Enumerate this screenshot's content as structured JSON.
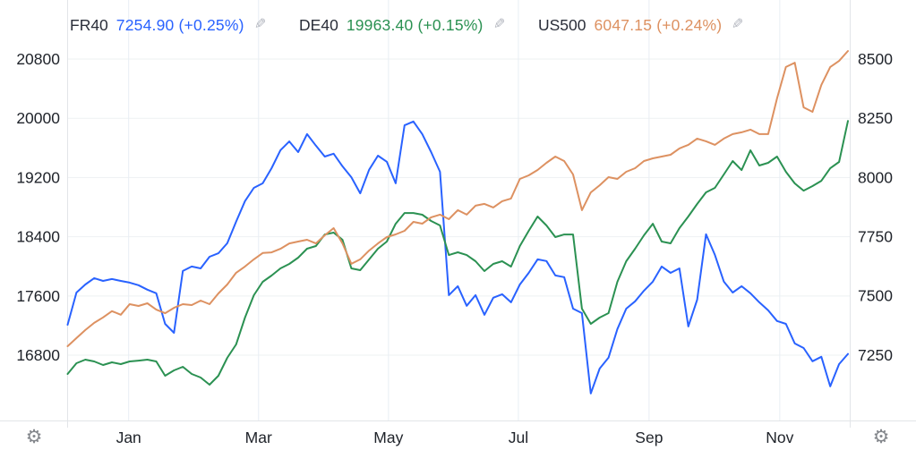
{
  "legend": {
    "items": [
      {
        "symbol": "FR40",
        "value": "7254.90",
        "change": "(+0.25%)",
        "color": "#2962ff"
      },
      {
        "symbol": "DE40",
        "value": "19963.40",
        "change": "(+0.15%)",
        "color": "#2b9152"
      },
      {
        "symbol": "US500",
        "value": "6047.15",
        "change": "(+0.24%)",
        "color": "#dd9161"
      }
    ]
  },
  "icons": {
    "gear": "⚙",
    "pencil": "✎"
  },
  "colors": {
    "blue": "#2962ff",
    "green": "#2b9152",
    "orange": "#dd9161",
    "axis_text": "#20242b",
    "grid_h": "#eef1f2",
    "grid_v": "#e8eef4",
    "border": "#e2e5e8"
  },
  "chart_data": {
    "type": "line",
    "title": "",
    "grid": true,
    "background": "#ffffff",
    "x_tick_labels": [
      "Jan",
      "Mar",
      "May",
      "Jul",
      "Sep",
      "Nov"
    ],
    "left_axis": {
      "series": "DE40",
      "ticks": [
        20800,
        20000,
        19200,
        18400,
        17600,
        16800
      ],
      "min": 15918,
      "max": 21054
    },
    "right_axis": {
      "series": "FR40",
      "ticks": [
        8500,
        8250,
        8000,
        7750,
        7500,
        7250
      ],
      "min": 6974,
      "max": 8579
    },
    "hidden_axis_us500": {
      "series": "US500",
      "min": 4401,
      "max": 6095
    },
    "series": [
      {
        "name": "FR40",
        "axis": "right",
        "color": "#2962ff",
        "last": 7254.9,
        "change_pct": 0.25,
        "values": [
          7378,
          7514,
          7548,
          7575,
          7563,
          7571,
          7563,
          7556,
          7545,
          7526,
          7511,
          7382,
          7344,
          7605,
          7624,
          7616,
          7665,
          7680,
          7722,
          7813,
          7900,
          7956,
          7975,
          8039,
          8115,
          8152,
          8107,
          8183,
          8134,
          8088,
          8100,
          8047,
          8001,
          7933,
          8032,
          8092,
          8066,
          7975,
          8220,
          8236,
          8183,
          8107,
          8024,
          7503,
          7541,
          7458,
          7503,
          7420,
          7492,
          7507,
          7473,
          7548,
          7597,
          7654,
          7647,
          7586,
          7579,
          7446,
          7427,
          7088,
          7193,
          7239,
          7360,
          7446,
          7477,
          7522,
          7560,
          7624,
          7597,
          7616,
          7371,
          7484,
          7760,
          7673,
          7560,
          7514,
          7541,
          7511,
          7473,
          7439,
          7394,
          7382,
          7299,
          7280,
          7224,
          7243,
          7118,
          7212,
          7254.9
        ]
      },
      {
        "name": "DE40",
        "axis": "left",
        "color": "#2b9152",
        "last": 19963.4,
        "change_pct": 0.15,
        "values": [
          16546,
          16691,
          16740,
          16715,
          16667,
          16703,
          16679,
          16715,
          16727,
          16740,
          16715,
          16522,
          16595,
          16643,
          16546,
          16498,
          16401,
          16522,
          16764,
          16945,
          17308,
          17610,
          17791,
          17876,
          17972,
          18033,
          18117,
          18238,
          18274,
          18431,
          18456,
          18359,
          17972,
          17948,
          18093,
          18238,
          18335,
          18576,
          18721,
          18721,
          18697,
          18613,
          18552,
          18153,
          18190,
          18153,
          18069,
          17936,
          18033,
          18069,
          17996,
          18274,
          18480,
          18673,
          18552,
          18395,
          18431,
          18431,
          17428,
          17223,
          17308,
          17368,
          17791,
          18069,
          18238,
          18419,
          18576,
          18335,
          18311,
          18516,
          18673,
          18842,
          18999,
          19060,
          19241,
          19422,
          19301,
          19567,
          19362,
          19398,
          19483,
          19277,
          19120,
          19023,
          19084,
          19156,
          19325,
          19410,
          19963.4
        ]
      },
      {
        "name": "US500",
        "axis": "us500",
        "color": "#dd9161",
        "last": 6047.15,
        "change_pct": 0.24,
        "values": [
          4732,
          4768,
          4804,
          4836,
          4860,
          4888,
          4872,
          4919,
          4911,
          4923,
          4895,
          4879,
          4903,
          4919,
          4915,
          4935,
          4919,
          4967,
          5007,
          5059,
          5087,
          5119,
          5147,
          5150,
          5166,
          5190,
          5198,
          5206,
          5190,
          5226,
          5258,
          5190,
          5099,
          5119,
          5158,
          5190,
          5218,
          5230,
          5246,
          5286,
          5278,
          5306,
          5318,
          5298,
          5338,
          5318,
          5358,
          5366,
          5350,
          5378,
          5390,
          5477,
          5493,
          5517,
          5549,
          5577,
          5557,
          5497,
          5338,
          5417,
          5449,
          5485,
          5477,
          5509,
          5525,
          5557,
          5569,
          5577,
          5585,
          5613,
          5629,
          5657,
          5645,
          5629,
          5657,
          5677,
          5685,
          5697,
          5677,
          5677,
          5836,
          5976,
          5995,
          5796,
          5776,
          5896,
          5976,
          6003,
          6047.15
        ]
      }
    ]
  }
}
